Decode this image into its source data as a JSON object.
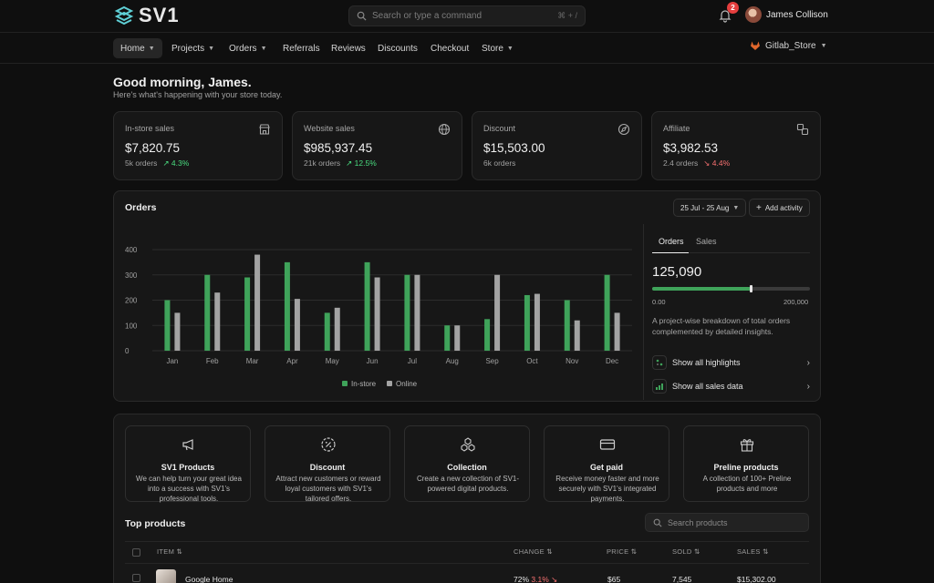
{
  "app": {
    "logo_text": "SV1"
  },
  "search": {
    "placeholder": "Search or type a command",
    "shortcut": "⌘ + /"
  },
  "notifications": {
    "count": "2"
  },
  "user": {
    "name": "James Collison"
  },
  "nav": {
    "items": [
      {
        "label": "Home"
      },
      {
        "label": "Projects"
      },
      {
        "label": "Orders"
      },
      {
        "label": "Referrals"
      },
      {
        "label": "Reviews"
      },
      {
        "label": "Discounts"
      },
      {
        "label": "Checkout"
      },
      {
        "label": "Store"
      }
    ],
    "store_selector": "Gitlab_Store"
  },
  "greeting": {
    "title": "Good morning, James.",
    "subtitle": "Here's what's happening with your store today."
  },
  "stats": [
    {
      "label": "In-store sales",
      "value": "$7,820.75",
      "orders": "5k orders",
      "change": "4.3%",
      "trend": "up",
      "icon": "store-icon"
    },
    {
      "label": "Website sales",
      "value": "$985,937.45",
      "orders": "21k orders",
      "change": "12.5%",
      "trend": "up",
      "icon": "globe-icon"
    },
    {
      "label": "Discount",
      "value": "$15,503.00",
      "orders": "6k orders",
      "change": "",
      "trend": "none",
      "icon": "compass-icon"
    },
    {
      "label": "Affiliate",
      "value": "$3,982.53",
      "orders": "2.4 orders",
      "change": "4.4%",
      "trend": "down",
      "icon": "link-icon"
    }
  ],
  "orders_panel": {
    "title": "Orders",
    "date_range": "25 Jul - 25 Aug",
    "add_button": "Add activity",
    "tabs": [
      "Orders",
      "Sales"
    ],
    "total": "125,090",
    "progress": {
      "min_label": "0.00",
      "max_label": "200,000",
      "value": 125090,
      "max": 200000
    },
    "description": "A project-wise breakdown of total orders complemented by detailed insights.",
    "links": [
      "Show all highlights",
      "Show all sales data"
    ]
  },
  "chart_data": {
    "type": "bar",
    "categories": [
      "Jan",
      "Feb",
      "Mar",
      "Apr",
      "May",
      "Jun",
      "Jul",
      "Aug",
      "Sep",
      "Oct",
      "Nov",
      "Dec"
    ],
    "series": [
      {
        "name": "In-store",
        "color": "#3fa35a",
        "values": [
          200,
          300,
          290,
          350,
          150,
          350,
          300,
          100,
          125,
          220,
          200,
          300
        ]
      },
      {
        "name": "Online",
        "color": "#a3a3a3",
        "values": [
          150,
          230,
          380,
          205,
          170,
          290,
          300,
          100,
          300,
          225,
          120,
          150
        ]
      }
    ],
    "y_ticks": [
      "0",
      "100",
      "200",
      "300",
      "400"
    ],
    "ylim": [
      0,
      400
    ],
    "grid": true,
    "legend_position": "bottom-center"
  },
  "features": [
    {
      "title": "SV1 Products",
      "desc": "We can help turn your great idea into a success with SV1's professional tools.",
      "icon": "megaphone-icon"
    },
    {
      "title": "Discount",
      "desc": "Attract new customers or reward loyal customers with SV1's tailored offers.",
      "icon": "discount-icon"
    },
    {
      "title": "Collection",
      "desc": "Create a new collection of SV1-powered digital products.",
      "icon": "boxes-icon"
    },
    {
      "title": "Get paid",
      "desc": "Receive money faster and more securely with SV1's integrated payments.",
      "icon": "credit-card-icon"
    },
    {
      "title": "Preline products",
      "desc": "A collection of 100+ Preline products and more",
      "icon": "gift-icon"
    }
  ],
  "top_products": {
    "title": "Top products",
    "search_placeholder": "Search products",
    "columns": [
      "ITEM",
      "CHANGE",
      "PRICE",
      "SOLD",
      "SALES"
    ],
    "rows": [
      {
        "item": "Google Home",
        "change": "72%",
        "change_delta": "3.1%",
        "price": "$65",
        "sold": "7,545",
        "sales": "$15,302.00"
      }
    ]
  }
}
